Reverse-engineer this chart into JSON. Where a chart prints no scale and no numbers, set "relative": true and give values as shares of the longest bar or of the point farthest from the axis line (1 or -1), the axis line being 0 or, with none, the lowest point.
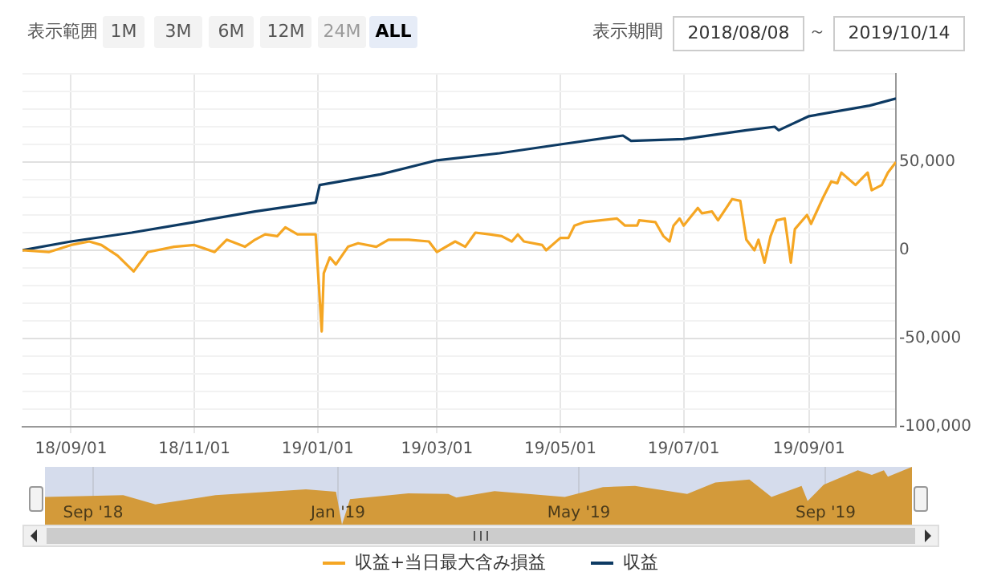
{
  "chart_data": [
    {
      "type": "line",
      "annotations": [
        "表示範囲",
        "1M",
        "3M",
        "6M",
        "12M",
        "24M",
        "ALL",
        "表示期間",
        "2018/08/08",
        "～",
        "2019/10/14"
      ],
      "xlim": [
        "2018-08-08",
        "2019-10-14"
      ],
      "xticks": [
        {
          "value": "2018-09-01",
          "label": "18/09/01"
        },
        {
          "value": "2018-11-01",
          "label": "18/11/01"
        },
        {
          "value": "2019-01-01",
          "label": "19/01/01"
        },
        {
          "value": "2019-03-01",
          "label": "19/03/01"
        },
        {
          "value": "2019-05-01",
          "label": "19/05/01"
        },
        {
          "value": "2019-07-01",
          "label": "19/07/01"
        },
        {
          "value": "2019-09-01",
          "label": "19/09/01"
        }
      ],
      "ylim": [
        -100000,
        100000
      ],
      "yticks": [
        {
          "value": -100000,
          "label": "-100,000"
        },
        {
          "value": -90000,
          "label": null
        },
        {
          "value": -80000,
          "label": null
        },
        {
          "value": -70000,
          "label": null
        },
        {
          "value": -60000,
          "label": null
        },
        {
          "value": -50000,
          "label": "-50,000"
        },
        {
          "value": -40000,
          "label": null
        },
        {
          "value": -30000,
          "label": null
        },
        {
          "value": -20000,
          "label": null
        },
        {
          "value": -10000,
          "label": null
        },
        0,
        {
          "value": 10000,
          "label": null
        },
        {
          "value": 20000,
          "label": null
        },
        {
          "value": 30000,
          "label": null
        },
        {
          "value": 40000,
          "label": null
        },
        {
          "value": 50000,
          "label": "50,000"
        },
        {
          "value": 60000,
          "label": null
        },
        {
          "value": 70000,
          "label": null
        },
        {
          "value": 80000,
          "label": null
        },
        {
          "value": 90000,
          "label": null
        },
        {
          "value": 100000,
          "label": null
        }
      ],
      "grid": true,
      "legend": "bottom",
      "marker": "none",
      "line_style": "solid",
      "series": [
        {
          "name": "収益+当日最大含み損益",
          "color": "#f5a623",
          "x": [
            "2018-08-08",
            "2018-08-21",
            "2018-09-01",
            "2018-09-10",
            "2018-09-16",
            "2018-09-24",
            "2018-10-02",
            "2018-10-09",
            "2018-10-22",
            "2018-11-01",
            "2018-11-11",
            "2018-11-17",
            "2018-11-26",
            "2018-12-01",
            "2018-12-06",
            "2018-12-12",
            "2018-12-16",
            "2018-12-22",
            "2018-12-31",
            "2019-01-03",
            "2019-01-04",
            "2019-01-07",
            "2019-01-10",
            "2019-01-16",
            "2019-01-21",
            "2019-01-30",
            "2019-02-05",
            "2019-02-15",
            "2019-02-25",
            "2019-03-01",
            "2019-03-10",
            "2019-03-15",
            "2019-03-20",
            "2019-03-27",
            "2019-04-02",
            "2019-04-07",
            "2019-04-10",
            "2019-04-13",
            "2019-04-22",
            "2019-04-24",
            "2019-05-01",
            "2019-05-05",
            "2019-05-08",
            "2019-05-13",
            "2019-05-29",
            "2019-06-02",
            "2019-06-08",
            "2019-06-09",
            "2019-06-17",
            "2019-06-21",
            "2019-06-24",
            "2019-06-26",
            "2019-06-29",
            "2019-07-01",
            "2019-07-08",
            "2019-07-10",
            "2019-07-15",
            "2019-07-18",
            "2019-07-25",
            "2019-07-29",
            "2019-08-01",
            "2019-08-05",
            "2019-08-07",
            "2019-08-10",
            "2019-08-13",
            "2019-08-16",
            "2019-08-20",
            "2019-08-23",
            "2019-08-25",
            "2019-08-31",
            "2019-09-02",
            "2019-09-08",
            "2019-09-12",
            "2019-09-15",
            "2019-09-17",
            "2019-09-24",
            "2019-09-30",
            "2019-10-02",
            "2019-10-07",
            "2019-10-10",
            "2019-10-14"
          ],
          "values": [
            0,
            -1000,
            3000,
            5000,
            3000,
            -3000,
            -12000,
            -1000,
            2000,
            3000,
            -1000,
            6000,
            2000,
            6000,
            9000,
            8000,
            13000,
            9000,
            9000,
            -46000,
            -13000,
            -4000,
            -8000,
            2000,
            4000,
            2000,
            6000,
            6000,
            5000,
            -1000,
            5000,
            2000,
            10000,
            9000,
            8000,
            5000,
            9000,
            5000,
            3000,
            0,
            7000,
            7000,
            14000,
            16000,
            18000,
            14000,
            14000,
            17000,
            16000,
            8000,
            5000,
            14000,
            18000,
            14000,
            24000,
            21000,
            22000,
            17000,
            29000,
            28000,
            6000,
            0,
            6000,
            -7000,
            8000,
            17000,
            18000,
            -7000,
            12000,
            20000,
            15000,
            30000,
            39000,
            38000,
            44000,
            37000,
            44000,
            34000,
            37000,
            44000,
            50000
          ]
        },
        {
          "name": "収益",
          "color": "#0d3a63",
          "x": [
            "2018-08-08",
            "2018-09-01",
            "2018-10-01",
            "2018-11-01",
            "2018-12-01",
            "2018-12-31",
            "2019-01-02",
            "2019-02-01",
            "2019-03-01",
            "2019-04-01",
            "2019-05-01",
            "2019-06-01",
            "2019-06-05",
            "2019-07-01",
            "2019-08-01",
            "2019-08-15",
            "2019-08-17",
            "2019-09-01",
            "2019-10-01",
            "2019-10-14"
          ],
          "values": [
            0,
            5000,
            10000,
            16000,
            22000,
            27000,
            37000,
            43000,
            51000,
            55000,
            60000,
            65000,
            62000,
            63000,
            68000,
            70000,
            68000,
            76000,
            82000,
            86000
          ]
        }
      ]
    },
    {
      "type": "area",
      "relative": true,
      "tick_labels": "x",
      "grid": "x",
      "xlim": [
        "2018-08-08",
        "2019-10-14"
      ],
      "xticks": [
        {
          "value": "2018-09-01",
          "label": "Sep '18"
        },
        {
          "value": "2019-01-01",
          "label": "Jan '19"
        },
        {
          "value": "2019-05-01",
          "label": "May '19"
        },
        {
          "value": "2019-09-01",
          "label": "Sep '19"
        }
      ],
      "series": [
        {
          "color": "#d39a3a",
          "x": [
            "2018-08-08",
            "2018-09-16",
            "2018-10-02",
            "2018-11-01",
            "2018-12-16",
            "2018-12-31",
            "2019-01-03",
            "2019-01-07",
            "2019-02-05",
            "2019-02-25",
            "2019-03-01",
            "2019-03-20",
            "2019-04-24",
            "2019-05-13",
            "2019-05-29",
            "2019-06-24",
            "2019-07-08",
            "2019-07-25",
            "2019-08-05",
            "2019-08-20",
            "2019-08-23",
            "2019-08-31",
            "2019-09-17",
            "2019-09-24",
            "2019-09-30",
            "2019-10-02",
            "2019-10-14"
          ],
          "values": [
            0.48,
            0.51,
            0.35,
            0.51,
            0.61,
            0.57,
            0,
            0.44,
            0.54,
            0.53,
            0.47,
            0.58,
            0.48,
            0.65,
            0.67,
            0.53,
            0.73,
            0.78,
            0.48,
            0.67,
            0.41,
            0.69,
            0.94,
            0.86,
            0.94,
            0.83,
            1
          ]
        }
      ]
    }
  ]
}
